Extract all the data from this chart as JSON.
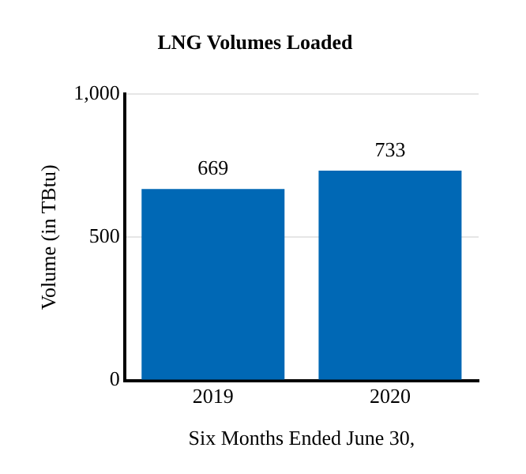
{
  "chart_data": {
    "type": "bar",
    "title": "LNG Volumes Loaded",
    "xlabel": "Six Months Ended June 30,",
    "ylabel": "Volume (in TBtu)",
    "categories": [
      "2019",
      "2020"
    ],
    "values": [
      669,
      733
    ],
    "color": "#0068b5",
    "ylim": [
      0,
      1000
    ],
    "yticks": [
      0,
      500,
      {
        "value": 1000,
        "label": "1,000"
      }
    ],
    "grid": "y",
    "data_labels": true
  }
}
